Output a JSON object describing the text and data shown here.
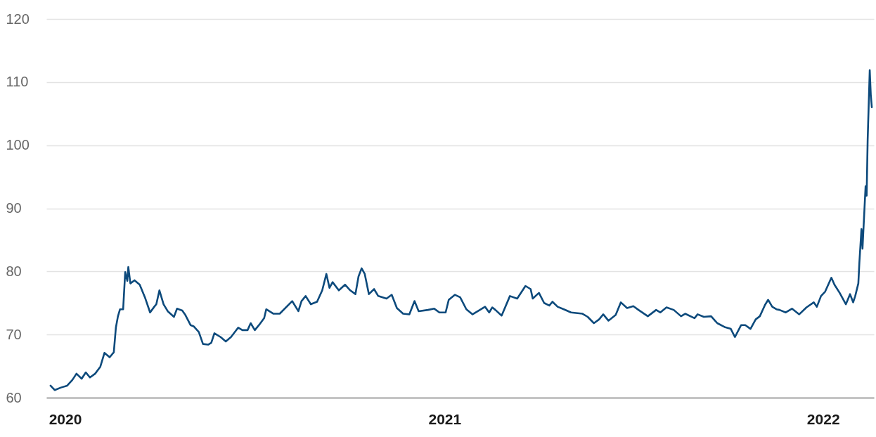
{
  "chart_data": {
    "type": "line",
    "color": "#0d4a7c",
    "grid": "y",
    "xlim": [
      "2019-12-14",
      "2022-02-19"
    ],
    "xticks": [
      "2020",
      "2021",
      "2022"
    ],
    "ylim": [
      60,
      120
    ],
    "yticks": [
      60,
      70,
      80,
      90,
      100,
      110,
      120
    ],
    "x": [
      "2019-12-18",
      "2019-12-22",
      "2019-12-28",
      "2020-01-03",
      "2020-01-08",
      "2020-01-12",
      "2020-01-17",
      "2020-01-21",
      "2020-01-25",
      "2020-01-30",
      "2020-02-04",
      "2020-02-08",
      "2020-02-13",
      "2020-02-17",
      "2020-02-19",
      "2020-02-21",
      "2020-02-23",
      "2020-02-26",
      "2020-02-28",
      "2020-03-01",
      "2020-03-02",
      "2020-03-04",
      "2020-03-08",
      "2020-03-13",
      "2020-03-18",
      "2020-03-23",
      "2020-03-27",
      "2020-03-29",
      "2020-04-01",
      "2020-04-05",
      "2020-04-09",
      "2020-04-15",
      "2020-04-18",
      "2020-04-23",
      "2020-04-26",
      "2020-05-01",
      "2020-05-04",
      "2020-05-09",
      "2020-05-13",
      "2020-05-18",
      "2020-05-21",
      "2020-05-24",
      "2020-05-30",
      "2020-06-04",
      "2020-06-09",
      "2020-06-16",
      "2020-06-20",
      "2020-06-25",
      "2020-06-28",
      "2020-07-02",
      "2020-07-06",
      "2020-07-11",
      "2020-07-13",
      "2020-07-20",
      "2020-07-26",
      "2020-08-07",
      "2020-08-13",
      "2020-08-16",
      "2020-08-20",
      "2020-08-25",
      "2020-08-31",
      "2020-09-05",
      "2020-09-09",
      "2020-09-12",
      "2020-09-15",
      "2020-09-21",
      "2020-09-27",
      "2020-10-02",
      "2020-10-07",
      "2020-10-10",
      "2020-10-13",
      "2020-10-16",
      "2020-10-20",
      "2020-10-25",
      "2020-10-29",
      "2020-11-06",
      "2020-11-11",
      "2020-11-16",
      "2020-11-22",
      "2020-11-28",
      "2020-12-03",
      "2020-12-07",
      "2020-12-16",
      "2020-12-22",
      "2020-12-27",
      "2021-01-02",
      "2021-01-05",
      "2021-01-11",
      "2021-01-16",
      "2021-01-22",
      "2021-01-28",
      "2021-02-04",
      "2021-02-09",
      "2021-02-13",
      "2021-02-16",
      "2021-02-19",
      "2021-02-25",
      "2021-03-05",
      "2021-03-12",
      "2021-03-20",
      "2021-03-25",
      "2021-03-27",
      "2021-04-02",
      "2021-04-07",
      "2021-04-12",
      "2021-04-15",
      "2021-04-20",
      "2021-04-26",
      "2021-05-03",
      "2021-05-14",
      "2021-05-19",
      "2021-05-25",
      "2021-05-30",
      "2021-06-03",
      "2021-06-08",
      "2021-06-15",
      "2021-06-20",
      "2021-06-26",
      "2021-07-02",
      "2021-07-07",
      "2021-07-16",
      "2021-07-24",
      "2021-07-28",
      "2021-08-03",
      "2021-08-10",
      "2021-08-17",
      "2021-08-21",
      "2021-08-30",
      "2021-09-02",
      "2021-09-08",
      "2021-09-15",
      "2021-09-21",
      "2021-09-28",
      "2021-10-04",
      "2021-10-08",
      "2021-10-14",
      "2021-10-18",
      "2021-10-23",
      "2021-10-28",
      "2021-11-01",
      "2021-11-06",
      "2021-11-09",
      "2021-11-13",
      "2021-11-17",
      "2021-11-20",
      "2021-11-26",
      "2021-12-02",
      "2021-12-09",
      "2021-12-16",
      "2021-12-23",
      "2021-12-26",
      "2021-12-30",
      "2022-01-03",
      "2022-01-09",
      "2022-01-12",
      "2022-01-17",
      "2022-01-23",
      "2022-01-27",
      "2022-01-30",
      "2022-02-01",
      "2022-02-04",
      "2022-02-05",
      "2022-02-07",
      "2022-02-08",
      "2022-02-11",
      "2022-02-12",
      "2022-02-13",
      "2022-02-15",
      "2022-02-16",
      "2022-02-17"
    ],
    "values": [
      61.9,
      61.2,
      61.6,
      61.9,
      62.8,
      63.8,
      63.0,
      64.0,
      63.2,
      63.8,
      64.9,
      67.1,
      66.4,
      67.2,
      71.1,
      72.9,
      74.0,
      74.0,
      79.9,
      78.5,
      80.7,
      78.1,
      78.6,
      77.9,
      75.9,
      73.5,
      74.4,
      74.8,
      77.0,
      74.8,
      73.7,
      72.8,
      74.1,
      73.8,
      73.1,
      71.5,
      71.3,
      70.4,
      68.5,
      68.4,
      68.7,
      70.2,
      69.6,
      68.9,
      69.6,
      71.1,
      70.7,
      70.7,
      71.8,
      70.7,
      71.5,
      72.6,
      74.0,
      73.3,
      73.3,
      75.3,
      73.7,
      75.3,
      76.1,
      74.8,
      75.2,
      77.0,
      79.6,
      77.4,
      78.3,
      77.0,
      77.9,
      77.0,
      76.4,
      79.2,
      80.5,
      79.6,
      76.4,
      77.2,
      76.1,
      75.7,
      76.3,
      74.2,
      73.3,
      73.2,
      75.3,
      73.7,
      73.9,
      74.1,
      73.5,
      73.5,
      75.5,
      76.3,
      75.9,
      74.0,
      73.2,
      73.9,
      74.4,
      73.5,
      74.3,
      73.9,
      73.0,
      76.1,
      75.7,
      77.7,
      77.2,
      75.7,
      76.6,
      75.0,
      74.6,
      75.2,
      74.4,
      74.0,
      73.5,
      73.3,
      72.8,
      71.8,
      72.4,
      73.2,
      72.2,
      73.1,
      75.1,
      74.2,
      74.5,
      73.9,
      72.9,
      73.9,
      73.5,
      74.3,
      73.9,
      72.9,
      73.3,
      72.6,
      73.2,
      72.8,
      72.9,
      71.8,
      71.2,
      70.9,
      69.6,
      71.5,
      71.5,
      70.9,
      72.4,
      72.9,
      74.7,
      75.5,
      74.4,
      74.0,
      73.9,
      73.5,
      74.1,
      73.2,
      74.3,
      75.1,
      74.4,
      76.1,
      76.8,
      79.0,
      77.9,
      76.6,
      74.8,
      76.4,
      75.1,
      76.1,
      78.1,
      81.4,
      86.7,
      83.6,
      93.5,
      92.0,
      100.9,
      111.9,
      108.0,
      106.0
    ]
  }
}
